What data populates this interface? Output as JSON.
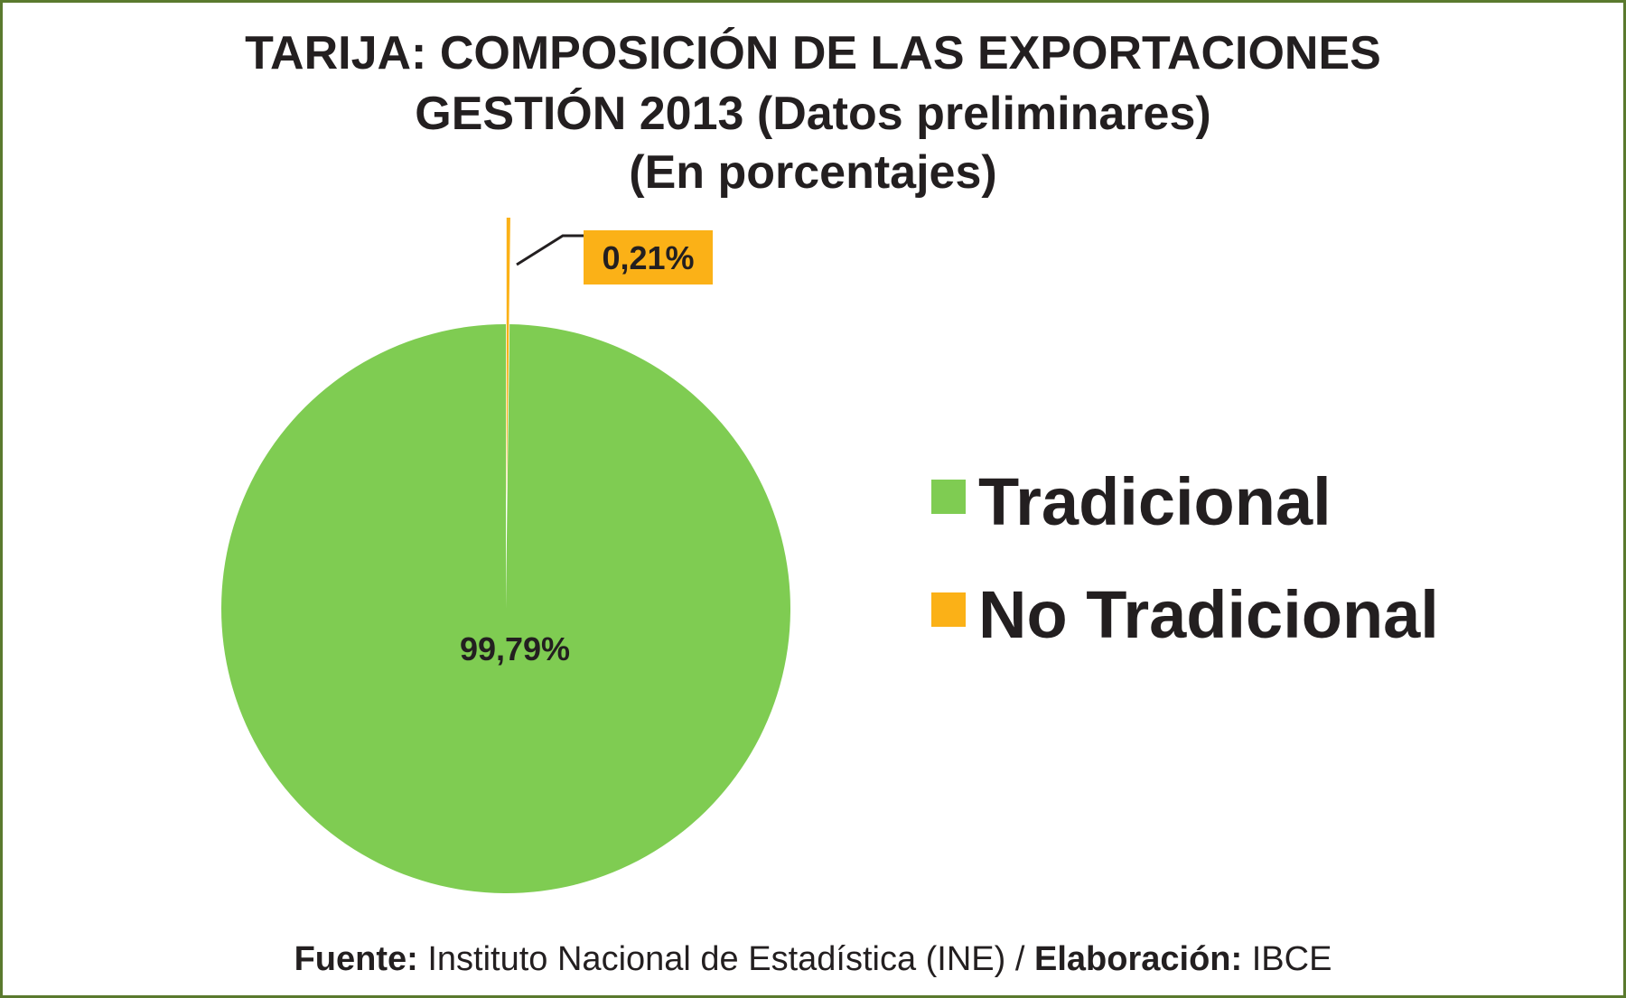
{
  "chart_data": {
    "type": "pie",
    "title_lines": [
      "TARIJA: COMPOSICIÓN DE LAS EXPORTACIONES",
      "GESTIÓN 2013 (Datos preliminares)",
      "(En porcentajes)"
    ],
    "categories": [
      "Tradicional",
      "No Tradicional"
    ],
    "values": [
      99.79,
      0.21
    ],
    "data_labels": [
      "99,79%",
      "0,21%"
    ],
    "colors": [
      "#7fcc52",
      "#fbb117"
    ],
    "exploded": [
      false,
      true
    ],
    "legend_position": "right"
  },
  "source": {
    "fuente_label": "Fuente:",
    "fuente_text": "Instituto Nacional de Estadística (INE) /",
    "elaboracion_label": "Elaboración:",
    "elaboracion_text": "IBCE"
  }
}
